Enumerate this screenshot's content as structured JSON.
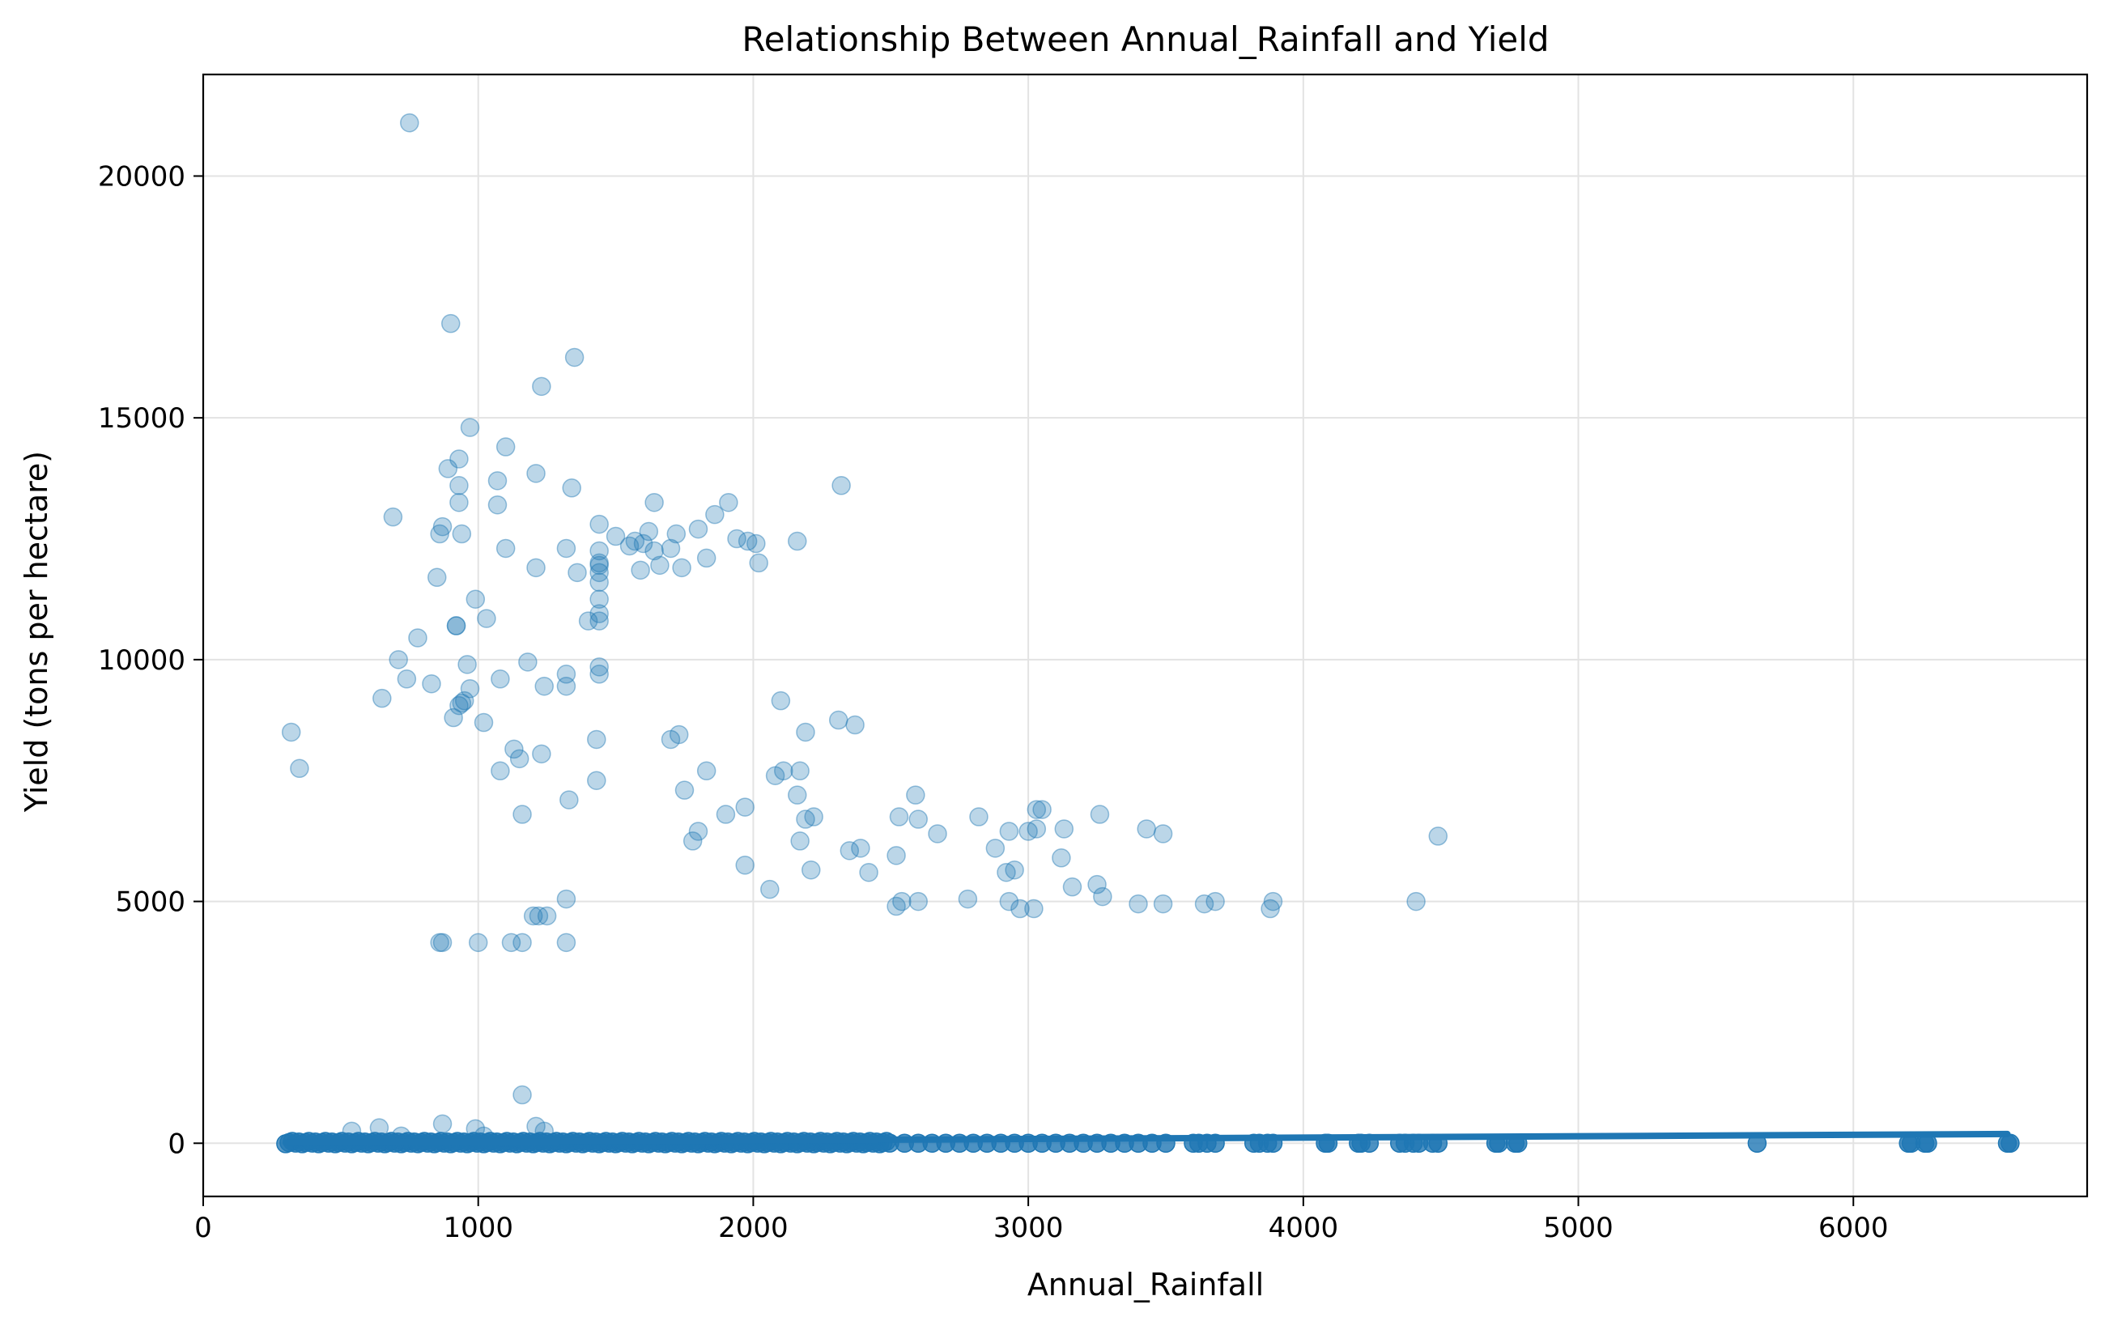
{
  "chart_data": {
    "type": "scatter",
    "title": "Relationship Between Annual_Rainfall and Yield",
    "xlabel": "Annual_Rainfall",
    "ylabel": "Yield (tons per hectare)",
    "xlim": [
      0,
      6850
    ],
    "ylim": [
      -1100,
      22100
    ],
    "xticks": [
      0,
      1000,
      2000,
      3000,
      4000,
      5000,
      6000
    ],
    "yticks": [
      0,
      5000,
      10000,
      15000,
      20000
    ],
    "grid": true,
    "legend": "none",
    "point_color": "#1f77b4",
    "point_alpha": 0.3,
    "line_color": "#1f77b4",
    "series": [
      {
        "kind": "points",
        "points": [
          [
            750,
            21100
          ],
          [
            900,
            16950
          ],
          [
            1350,
            16250
          ],
          [
            1230,
            15650
          ],
          [
            970,
            14800
          ],
          [
            1100,
            14400
          ],
          [
            930,
            14150
          ],
          [
            890,
            13950
          ],
          [
            1070,
            13700
          ],
          [
            930,
            13600
          ],
          [
            2320,
            13600
          ],
          [
            1340,
            13550
          ],
          [
            1210,
            13850
          ],
          [
            930,
            13250
          ],
          [
            1070,
            13200
          ],
          [
            1640,
            13250
          ],
          [
            1910,
            13250
          ],
          [
            690,
            12950
          ],
          [
            1860,
            13000
          ],
          [
            870,
            12750
          ],
          [
            860,
            12600
          ],
          [
            940,
            12600
          ],
          [
            1440,
            12800
          ],
          [
            1500,
            12550
          ],
          [
            1550,
            12350
          ],
          [
            1570,
            12450
          ],
          [
            1600,
            12400
          ],
          [
            1620,
            12650
          ],
          [
            1640,
            12250
          ],
          [
            1700,
            12300
          ],
          [
            1720,
            12600
          ],
          [
            1800,
            12700
          ],
          [
            1940,
            12500
          ],
          [
            1980,
            12450
          ],
          [
            2010,
            12400
          ],
          [
            2160,
            12450
          ],
          [
            1100,
            12300
          ],
          [
            1320,
            12300
          ],
          [
            1440,
            12250
          ],
          [
            1440,
            12000
          ],
          [
            1440,
            11800
          ],
          [
            1440,
            11600
          ],
          [
            1440,
            11950
          ],
          [
            1360,
            11800
          ],
          [
            1590,
            11850
          ],
          [
            1660,
            11950
          ],
          [
            1740,
            11900
          ],
          [
            1830,
            12100
          ],
          [
            2020,
            12000
          ],
          [
            1210,
            11900
          ],
          [
            850,
            11700
          ],
          [
            990,
            11250
          ],
          [
            1440,
            11250
          ],
          [
            1030,
            10850
          ],
          [
            1400,
            10800
          ],
          [
            1440,
            10800
          ],
          [
            1440,
            10950
          ],
          [
            780,
            10450
          ],
          [
            920,
            10700
          ],
          [
            920,
            10700
          ],
          [
            710,
            10000
          ],
          [
            1180,
            9950
          ],
          [
            960,
            9900
          ],
          [
            1440,
            9850
          ],
          [
            1440,
            9700
          ],
          [
            650,
            9200
          ],
          [
            740,
            9600
          ],
          [
            830,
            9500
          ],
          [
            1080,
            9600
          ],
          [
            1240,
            9450
          ],
          [
            1320,
            9700
          ],
          [
            1320,
            9450
          ],
          [
            940,
            9100
          ],
          [
            970,
            9400
          ],
          [
            930,
            9050
          ],
          [
            950,
            9150
          ],
          [
            910,
            8800
          ],
          [
            1020,
            8700
          ],
          [
            320,
            8500
          ],
          [
            1130,
            8150
          ],
          [
            1230,
            8050
          ],
          [
            1150,
            7950
          ],
          [
            1080,
            7700
          ],
          [
            350,
            7750
          ],
          [
            1430,
            8350
          ],
          [
            1430,
            7500
          ],
          [
            1330,
            7100
          ],
          [
            1160,
            6800
          ],
          [
            1700,
            8350
          ],
          [
            1730,
            8450
          ],
          [
            1750,
            7300
          ],
          [
            1780,
            6250
          ],
          [
            1800,
            6450
          ],
          [
            1830,
            7700
          ],
          [
            1900,
            6800
          ],
          [
            1970,
            6950
          ],
          [
            1970,
            5750
          ],
          [
            2060,
            5250
          ],
          [
            2080,
            7600
          ],
          [
            2100,
            9150
          ],
          [
            2110,
            7700
          ],
          [
            2160,
            7200
          ],
          [
            2170,
            7700
          ],
          [
            2170,
            6250
          ],
          [
            2190,
            8500
          ],
          [
            2190,
            6700
          ],
          [
            2210,
            5650
          ],
          [
            2220,
            6750
          ],
          [
            2310,
            8750
          ],
          [
            2350,
            6050
          ],
          [
            2370,
            8650
          ],
          [
            2390,
            6100
          ],
          [
            2420,
            5600
          ],
          [
            2520,
            5950
          ],
          [
            2520,
            4900
          ],
          [
            2530,
            6750
          ],
          [
            2540,
            5000
          ],
          [
            2590,
            7200
          ],
          [
            2600,
            6700
          ],
          [
            2600,
            5000
          ],
          [
            2670,
            6400
          ],
          [
            2780,
            5050
          ],
          [
            2820,
            6750
          ],
          [
            2880,
            6100
          ],
          [
            2920,
            5600
          ],
          [
            2930,
            6450
          ],
          [
            2930,
            5000
          ],
          [
            2950,
            5650
          ],
          [
            2970,
            4850
          ],
          [
            3000,
            6450
          ],
          [
            3020,
            4850
          ],
          [
            3030,
            6500
          ],
          [
            3030,
            6900
          ],
          [
            3050,
            6900
          ],
          [
            3120,
            5900
          ],
          [
            3130,
            6500
          ],
          [
            3160,
            5300
          ],
          [
            3250,
            5350
          ],
          [
            3260,
            6800
          ],
          [
            3270,
            5100
          ],
          [
            3400,
            4950
          ],
          [
            3430,
            6500
          ],
          [
            3490,
            6400
          ],
          [
            3490,
            4950
          ],
          [
            3640,
            4950
          ],
          [
            3680,
            5000
          ],
          [
            3880,
            4850
          ],
          [
            3890,
            5000
          ],
          [
            4410,
            5000
          ],
          [
            4490,
            6350
          ],
          [
            1320,
            5050
          ],
          [
            1250,
            4700
          ],
          [
            1200,
            4700
          ],
          [
            1220,
            4700
          ],
          [
            860,
            4150
          ],
          [
            870,
            4150
          ],
          [
            1000,
            4150
          ],
          [
            1120,
            4150
          ],
          [
            1160,
            4150
          ],
          [
            1320,
            4150
          ],
          [
            1160,
            1000
          ],
          [
            870,
            400
          ],
          [
            990,
            300
          ],
          [
            640,
            320
          ],
          [
            1210,
            350
          ],
          [
            1240,
            250
          ],
          [
            540,
            250
          ],
          [
            1020,
            150
          ],
          [
            720,
            150
          ]
        ]
      },
      {
        "kind": "baseline_band",
        "x_start": 300,
        "x_end": 2500,
        "y": 20
      },
      {
        "kind": "baseline_points",
        "x": [
          2550,
          2600,
          2650,
          2700,
          2750,
          2800,
          2850,
          2900,
          2950,
          3000,
          3050,
          3100,
          3150,
          3200,
          3250,
          3300,
          3350,
          3400,
          3450,
          3500,
          3600,
          3620,
          3650,
          3680,
          3820,
          3840,
          3870,
          3890,
          4080,
          4090,
          4200,
          4210,
          4240,
          4350,
          4370,
          4400,
          4420,
          4470,
          4490,
          4700,
          4710,
          4770,
          4780,
          5650,
          6200,
          6210,
          6260,
          6270,
          6560,
          6570
        ],
        "y": 0
      },
      {
        "kind": "fit_line",
        "x": [
          300,
          6560
        ],
        "y": [
          10,
          190
        ]
      }
    ]
  }
}
